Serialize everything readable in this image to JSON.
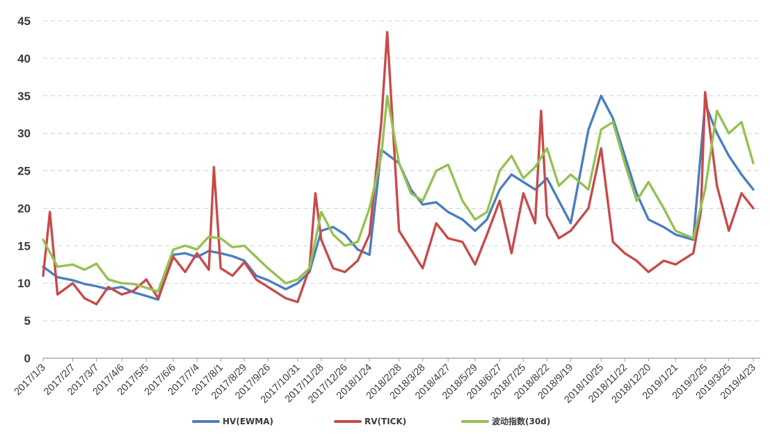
{
  "chart_data": {
    "type": "line",
    "title": "",
    "xlabel": "",
    "ylabel": "",
    "ylim": [
      0,
      45
    ],
    "y_ticks": [
      "0",
      "5",
      "10",
      "15",
      "20",
      "25",
      "30",
      "35",
      "40",
      "45"
    ],
    "grid": true,
    "legend_position": "bottom",
    "x_tick_labels": [
      "2017/1/3",
      "2017/2/7",
      "2017/3/7",
      "2017/4/6",
      "2017/5/5",
      "2017/6/6",
      "2017/7/4",
      "2017/8/1",
      "2017/8/29",
      "2017/9/26",
      "2017/10/31",
      "2017/11/28",
      "2017/12/26",
      "2018/1/24",
      "2018/2/28",
      "2018/3/28",
      "2018/4/27",
      "2018/5/29",
      "2018/6/27",
      "2018/7/25",
      "2018/8/22",
      "2018/9/19",
      "2018/10/25",
      "2018/11/22",
      "2018/12/20",
      "2019/1/21",
      "2019/2/25",
      "2019/3/25",
      "2019/4/23"
    ],
    "series": [
      {
        "name": "HV(EWMA)",
        "color": "#4a7ebf",
        "x": [
          "2017/1/3",
          "2017/1/20",
          "2017/2/7",
          "2017/2/21",
          "2017/3/7",
          "2017/3/21",
          "2017/4/6",
          "2017/4/20",
          "2017/5/5",
          "2017/5/19",
          "2017/6/6",
          "2017/6/20",
          "2017/7/4",
          "2017/7/18",
          "2017/8/1",
          "2017/8/15",
          "2017/8/29",
          "2017/9/12",
          "2017/9/26",
          "2017/10/17",
          "2017/10/31",
          "2017/11/14",
          "2017/11/28",
          "2017/12/12",
          "2017/12/26",
          "2018/1/10",
          "2018/1/24",
          "2018/2/7",
          "2018/2/28",
          "2018/3/14",
          "2018/3/28",
          "2018/4/13",
          "2018/4/27",
          "2018/5/14",
          "2018/5/29",
          "2018/6/12",
          "2018/6/27",
          "2018/7/11",
          "2018/7/25",
          "2018/8/8",
          "2018/8/22",
          "2018/9/5",
          "2018/9/19",
          "2018/10/10",
          "2018/10/25",
          "2018/11/8",
          "2018/11/22",
          "2018/12/6",
          "2018/12/20",
          "2019/1/7",
          "2019/1/21",
          "2019/2/11",
          "2019/2/25",
          "2019/3/11",
          "2019/3/25",
          "2019/4/9",
          "2019/4/23"
        ],
        "values": [
          12.2,
          10.8,
          10.4,
          9.9,
          9.6,
          9.2,
          9.5,
          8.8,
          8.3,
          7.8,
          13.8,
          14,
          13.5,
          14.3,
          14,
          13.6,
          13,
          11,
          10.4,
          9.2,
          10,
          11.5,
          17,
          17.5,
          16.5,
          14.5,
          13.8,
          27.8,
          26,
          22.5,
          20.5,
          20.8,
          19.5,
          18.5,
          17,
          18.5,
          22.5,
          24.5,
          23.5,
          22.5,
          24,
          21,
          18,
          30.5,
          35,
          32,
          27,
          22,
          18.5,
          17.5,
          16.5,
          15.8,
          34,
          30,
          27,
          24.5,
          22.5
        ]
      },
      {
        "name": "RV(TICK)",
        "color": "#c84a4a",
        "x": [
          "2017/1/3",
          "2017/1/11",
          "2017/1/20",
          "2017/2/7",
          "2017/2/21",
          "2017/3/7",
          "2017/3/21",
          "2017/4/6",
          "2017/4/20",
          "2017/5/5",
          "2017/5/19",
          "2017/6/6",
          "2017/6/20",
          "2017/7/4",
          "2017/7/18",
          "2017/7/24",
          "2017/8/1",
          "2017/8/15",
          "2017/8/29",
          "2017/9/12",
          "2017/9/26",
          "2017/10/17",
          "2017/10/31",
          "2017/11/14",
          "2017/11/21",
          "2017/11/28",
          "2017/12/12",
          "2017/12/26",
          "2018/1/10",
          "2018/1/24",
          "2018/2/7",
          "2018/2/14",
          "2018/2/28",
          "2018/3/14",
          "2018/3/28",
          "2018/4/13",
          "2018/4/27",
          "2018/5/14",
          "2018/5/29",
          "2018/6/12",
          "2018/6/27",
          "2018/7/11",
          "2018/7/25",
          "2018/8/8",
          "2018/8/15",
          "2018/8/22",
          "2018/9/5",
          "2018/9/19",
          "2018/10/10",
          "2018/10/25",
          "2018/11/8",
          "2018/11/22",
          "2018/12/6",
          "2018/12/20",
          "2019/1/7",
          "2019/1/21",
          "2019/2/11",
          "2019/2/20",
          "2019/2/25",
          "2019/3/11",
          "2019/3/25",
          "2019/4/9",
          "2019/4/23"
        ],
        "values": [
          11,
          19.5,
          8.5,
          10,
          8,
          7.2,
          9.5,
          8.5,
          9,
          10.5,
          8,
          13.5,
          11.5,
          14,
          11.8,
          25.5,
          12,
          11,
          12.8,
          10.5,
          9.5,
          8,
          7.5,
          12,
          22,
          15.8,
          12,
          11.5,
          13,
          16.5,
          31.5,
          43.5,
          17,
          14.5,
          12,
          18,
          16,
          15.5,
          12.5,
          16.5,
          21,
          14,
          22,
          18,
          33,
          19,
          16,
          17,
          20,
          28,
          15.5,
          14,
          13,
          11.5,
          13,
          12.5,
          14,
          19.5,
          35.5,
          23,
          17,
          22,
          20
        ]
      },
      {
        "name": "波动指数(30d)",
        "color": "#95c151",
        "x": [
          "2017/1/3",
          "2017/1/20",
          "2017/2/7",
          "2017/2/21",
          "2017/3/7",
          "2017/3/21",
          "2017/4/6",
          "2017/4/20",
          "2017/5/5",
          "2017/5/19",
          "2017/6/6",
          "2017/6/20",
          "2017/7/4",
          "2017/7/18",
          "2017/8/1",
          "2017/8/15",
          "2017/8/29",
          "2017/9/12",
          "2017/9/26",
          "2017/10/17",
          "2017/10/31",
          "2017/11/14",
          "2017/11/28",
          "2017/12/12",
          "2017/12/26",
          "2018/1/10",
          "2018/1/24",
          "2018/2/7",
          "2018/2/14",
          "2018/2/28",
          "2018/3/14",
          "2018/3/28",
          "2018/4/13",
          "2018/4/27",
          "2018/5/14",
          "2018/5/29",
          "2018/6/12",
          "2018/6/27",
          "2018/7/11",
          "2018/7/25",
          "2018/8/8",
          "2018/8/22",
          "2018/9/5",
          "2018/9/19",
          "2018/10/10",
          "2018/10/25",
          "2018/11/8",
          "2018/11/22",
          "2018/12/6",
          "2018/12/20",
          "2019/1/7",
          "2019/1/21",
          "2019/2/11",
          "2019/2/25",
          "2019/3/11",
          "2019/3/25",
          "2019/4/9",
          "2019/4/23"
        ],
        "values": [
          15.8,
          12.2,
          12.5,
          11.8,
          12.6,
          10.5,
          10,
          9.9,
          9.4,
          8.9,
          14.5,
          15,
          14.5,
          16.2,
          16,
          14.8,
          15,
          13.5,
          12,
          10,
          10.5,
          12,
          19.5,
          16.5,
          15,
          15.5,
          20,
          27,
          35,
          26,
          22,
          21,
          25,
          25.8,
          21,
          18.5,
          19.5,
          25,
          27,
          24,
          25.5,
          28,
          23,
          24.5,
          22.5,
          30.5,
          31.5,
          26,
          21,
          23.5,
          20,
          17,
          16,
          22.5,
          33,
          30,
          31.5,
          26
        ]
      }
    ]
  }
}
